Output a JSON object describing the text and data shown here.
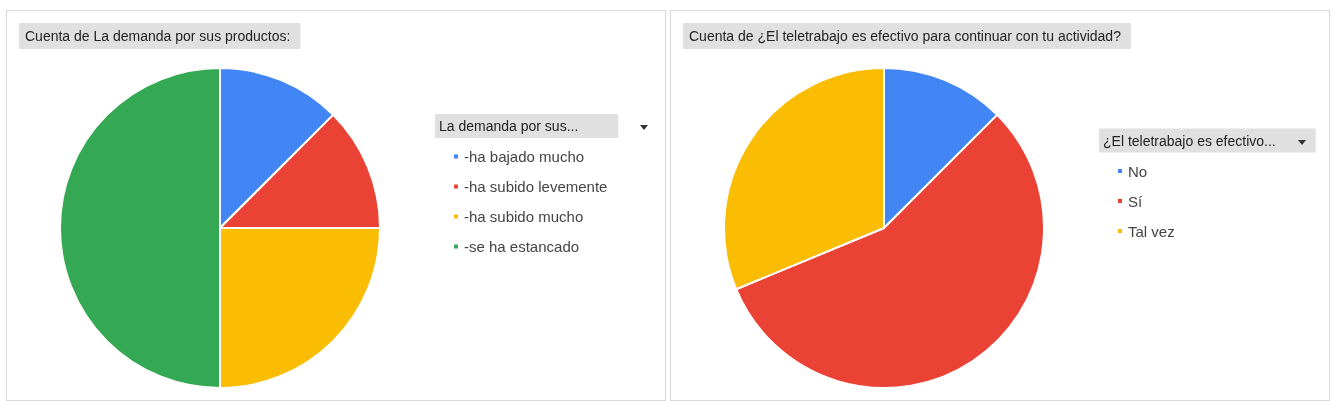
{
  "chart_data": [
    {
      "type": "pie",
      "title": "Cuenta de La demanda por sus productos:",
      "legend_title": "La demanda por sus...",
      "legend": "right",
      "categories": [
        "-ha bajado mucho",
        "-ha subido levemente",
        "-ha subido mucho",
        "-se ha estancado"
      ],
      "values": [
        12.5,
        12.5,
        25,
        50
      ],
      "colors": [
        "#4285f4",
        "#ea4335",
        "#fbbc04",
        "#34a853"
      ]
    },
    {
      "type": "pie",
      "title": "Cuenta de ¿El teletrabajo es efectivo para continuar con tu actividad?",
      "legend_title": "¿El teletrabajo es efectivo...",
      "legend": "right",
      "categories": [
        "No",
        "Sí",
        "Tal vez"
      ],
      "values": [
        12.5,
        56.25,
        31.25
      ],
      "colors": [
        "#4285f4",
        "#ea4335",
        "#fbbc04"
      ]
    }
  ]
}
